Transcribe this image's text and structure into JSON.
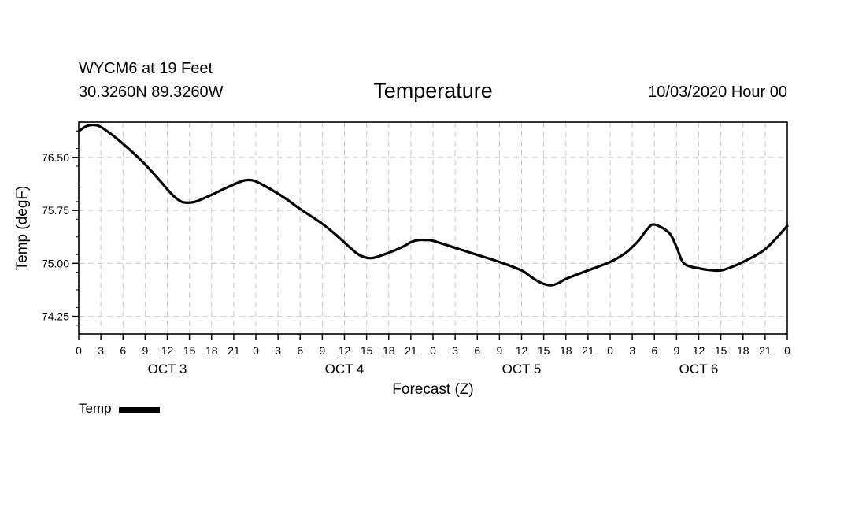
{
  "header": {
    "station": "WYCM6 at 19 Feet",
    "coords": "30.3260N 89.3260W",
    "title": "Temperature",
    "run": "10/03/2020 Hour 00"
  },
  "legend": {
    "label": "Temp"
  },
  "chart_data": {
    "type": "line",
    "title": "Temperature",
    "xlabel": "Forecast (Z)",
    "ylabel": "Temp (degF)",
    "xlim": [
      0,
      96
    ],
    "ylim": [
      74.0,
      77.0
    ],
    "yticks": [
      74.25,
      75.0,
      75.75,
      76.5
    ],
    "ytick_labels": [
      "74.25",
      "75.00",
      "75.75",
      "76.50"
    ],
    "xticks": [
      0,
      3,
      6,
      9,
      12,
      15,
      18,
      21,
      24,
      27,
      30,
      33,
      36,
      39,
      42,
      45,
      48,
      51,
      54,
      57,
      60,
      63,
      66,
      69,
      72,
      75,
      78,
      81,
      84,
      87,
      90,
      93,
      96
    ],
    "xtick_labels": [
      "0",
      "3",
      "6",
      "9",
      "12",
      "15",
      "18",
      "21",
      "0",
      "3",
      "6",
      "9",
      "12",
      "15",
      "18",
      "21",
      "0",
      "3",
      "6",
      "9",
      "12",
      "15",
      "18",
      "21",
      "0",
      "3",
      "6",
      "9",
      "12",
      "15",
      "18",
      "21",
      "0"
    ],
    "day_labels": [
      {
        "label": "OCT 3",
        "hour": 12
      },
      {
        "label": "OCT 4",
        "hour": 36
      },
      {
        "label": "OCT 5",
        "hour": 60
      },
      {
        "label": "OCT 6",
        "hour": 84
      }
    ],
    "grid": true,
    "legend_position": "bottom-left",
    "series": [
      {
        "name": "Temp",
        "x": [
          0,
          1,
          2,
          3,
          5,
          7,
          9,
          11,
          12,
          13,
          14,
          15,
          16,
          18,
          20,
          22,
          23,
          24,
          26,
          28,
          30,
          33,
          35,
          37,
          38,
          39,
          40,
          42,
          44,
          45,
          46,
          47,
          48,
          51,
          54,
          57,
          60,
          61,
          62,
          63,
          64,
          65,
          66,
          69,
          72,
          74,
          75,
          76,
          77,
          78,
          80,
          81,
          82,
          84,
          86,
          87,
          88,
          90,
          93,
          96
        ],
        "values": [
          76.87,
          76.94,
          76.96,
          76.93,
          76.78,
          76.6,
          76.4,
          76.17,
          76.05,
          75.94,
          75.87,
          75.86,
          75.88,
          75.97,
          76.07,
          76.16,
          76.18,
          76.16,
          76.05,
          75.92,
          75.77,
          75.56,
          75.39,
          75.2,
          75.12,
          75.08,
          75.08,
          75.15,
          75.24,
          75.3,
          75.33,
          75.33,
          75.32,
          75.22,
          75.12,
          75.02,
          74.9,
          74.83,
          74.76,
          74.71,
          74.69,
          74.72,
          74.78,
          74.9,
          75.02,
          75.14,
          75.23,
          75.34,
          75.48,
          75.55,
          75.43,
          75.23,
          75.0,
          74.93,
          74.9,
          74.9,
          74.93,
          75.02,
          75.2,
          75.53
        ]
      }
    ]
  }
}
